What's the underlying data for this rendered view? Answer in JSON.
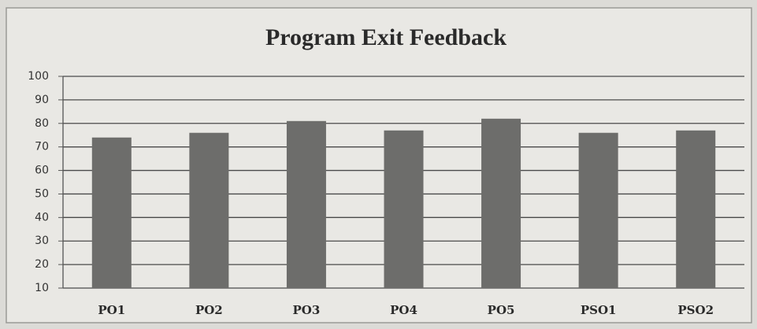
{
  "chart_data": {
    "type": "bar",
    "title": "Program Exit Feedback",
    "categories": [
      "PO1",
      "PO2",
      "PO3",
      "PO4",
      "PO5",
      "PSO1",
      "PSO2"
    ],
    "values": [
      74,
      76,
      81,
      77,
      82,
      76,
      77
    ],
    "color": "#6d6d6b",
    "ylim": [
      10,
      100
    ],
    "yticks": [
      10,
      20,
      30,
      40,
      50,
      60,
      70,
      80,
      90,
      100
    ],
    "grid": true
  }
}
